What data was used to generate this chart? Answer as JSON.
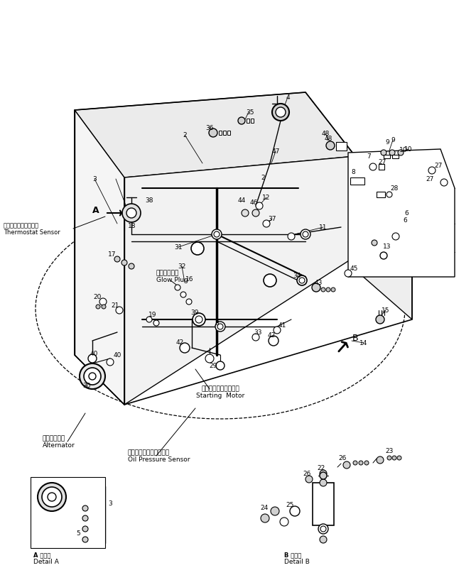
{
  "bg": "#ffffff",
  "labels": {
    "thermostat_jp": "サーモスタットセンサ",
    "thermostat_en": "Thermostat Sensor",
    "glow_jp": "グロープラグ",
    "glow_en": "Glow Plug",
    "alt_jp": "オルタネータ",
    "alt_en": "Alternator",
    "oil_jp": "オイルプレッシャセンサ",
    "oil_en": "Oil Pressure Sensor",
    "start_jp": "スターティングモータ",
    "start_en": "Starting  Motor",
    "det_a_jp": "A 詳細図",
    "det_a_en": "Detail A",
    "det_b_jp": "B 詳細図",
    "det_b_en": "Detail B"
  }
}
